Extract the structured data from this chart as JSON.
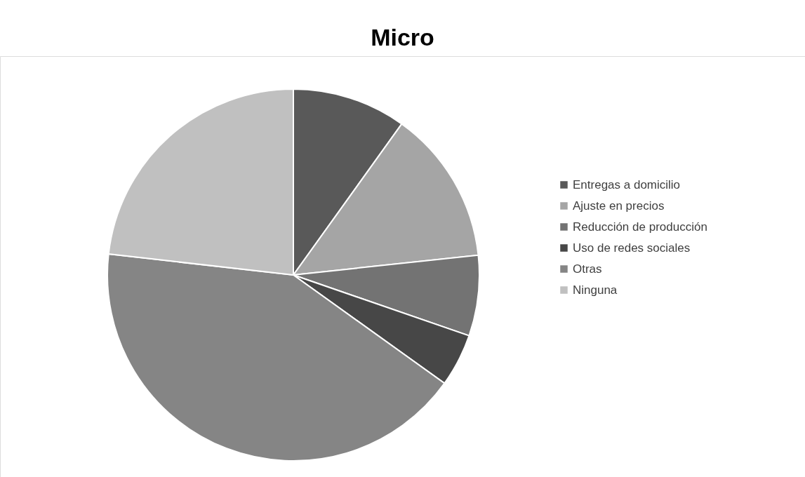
{
  "chart_data": {
    "type": "pie",
    "title": "Micro",
    "categories": [
      "Entregas a domicilio",
      "Ajuste en precios",
      "Reducción de producción",
      "Uso de redes sociales",
      "Otras",
      "Ninguna"
    ],
    "values": [
      9.9,
      13.4,
      7.0,
      4.6,
      41.9,
      23.2
    ],
    "colors": [
      "#595959",
      "#a5a5a5",
      "#737373",
      "#474747",
      "#858585",
      "#c0c0c0"
    ],
    "legend": "right"
  }
}
